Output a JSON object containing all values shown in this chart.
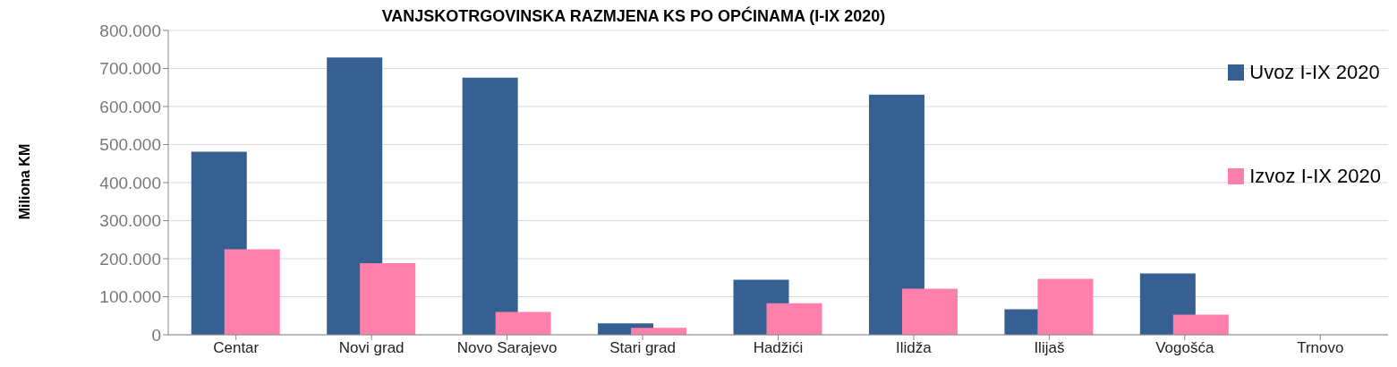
{
  "chart_data": {
    "type": "bar",
    "title": "VANJSKOTRGOVINSKA RAZMJENA KS PO OPĆINAMA (I-IX 2020)",
    "ylabel": "Miliona KM",
    "categories": [
      "Centar",
      "Novi grad",
      "Novo Sarajevo",
      "Stari grad",
      "Hadžići",
      "Ilidža",
      "Ilijaš",
      "Vogošća",
      "Trnovo"
    ],
    "series": [
      {
        "name": "Uvoz I-IX 2020",
        "color": "#366092",
        "values": [
          481000,
          729000,
          676000,
          30000,
          145000,
          631000,
          67000,
          161000,
          0
        ]
      },
      {
        "name": "Izvoz I-IX 2020",
        "color": "#ff80ab",
        "values": [
          225000,
          188000,
          60000,
          18000,
          83000,
          121000,
          147000,
          53000,
          0
        ]
      }
    ],
    "ylim": [
      0,
      800000
    ],
    "yticks": [
      {
        "value": 0,
        "label": "0"
      },
      {
        "value": 100000,
        "label": "100.000"
      },
      {
        "value": 200000,
        "label": "200.000"
      },
      {
        "value": 300000,
        "label": "300.000"
      },
      {
        "value": 400000,
        "label": "400.000"
      },
      {
        "value": 500000,
        "label": "500.000"
      },
      {
        "value": 600000,
        "label": "600.000"
      },
      {
        "value": 700000,
        "label": "700.000"
      },
      {
        "value": 800000,
        "label": "800.000"
      }
    ],
    "grid": "y",
    "legend": "top right"
  }
}
